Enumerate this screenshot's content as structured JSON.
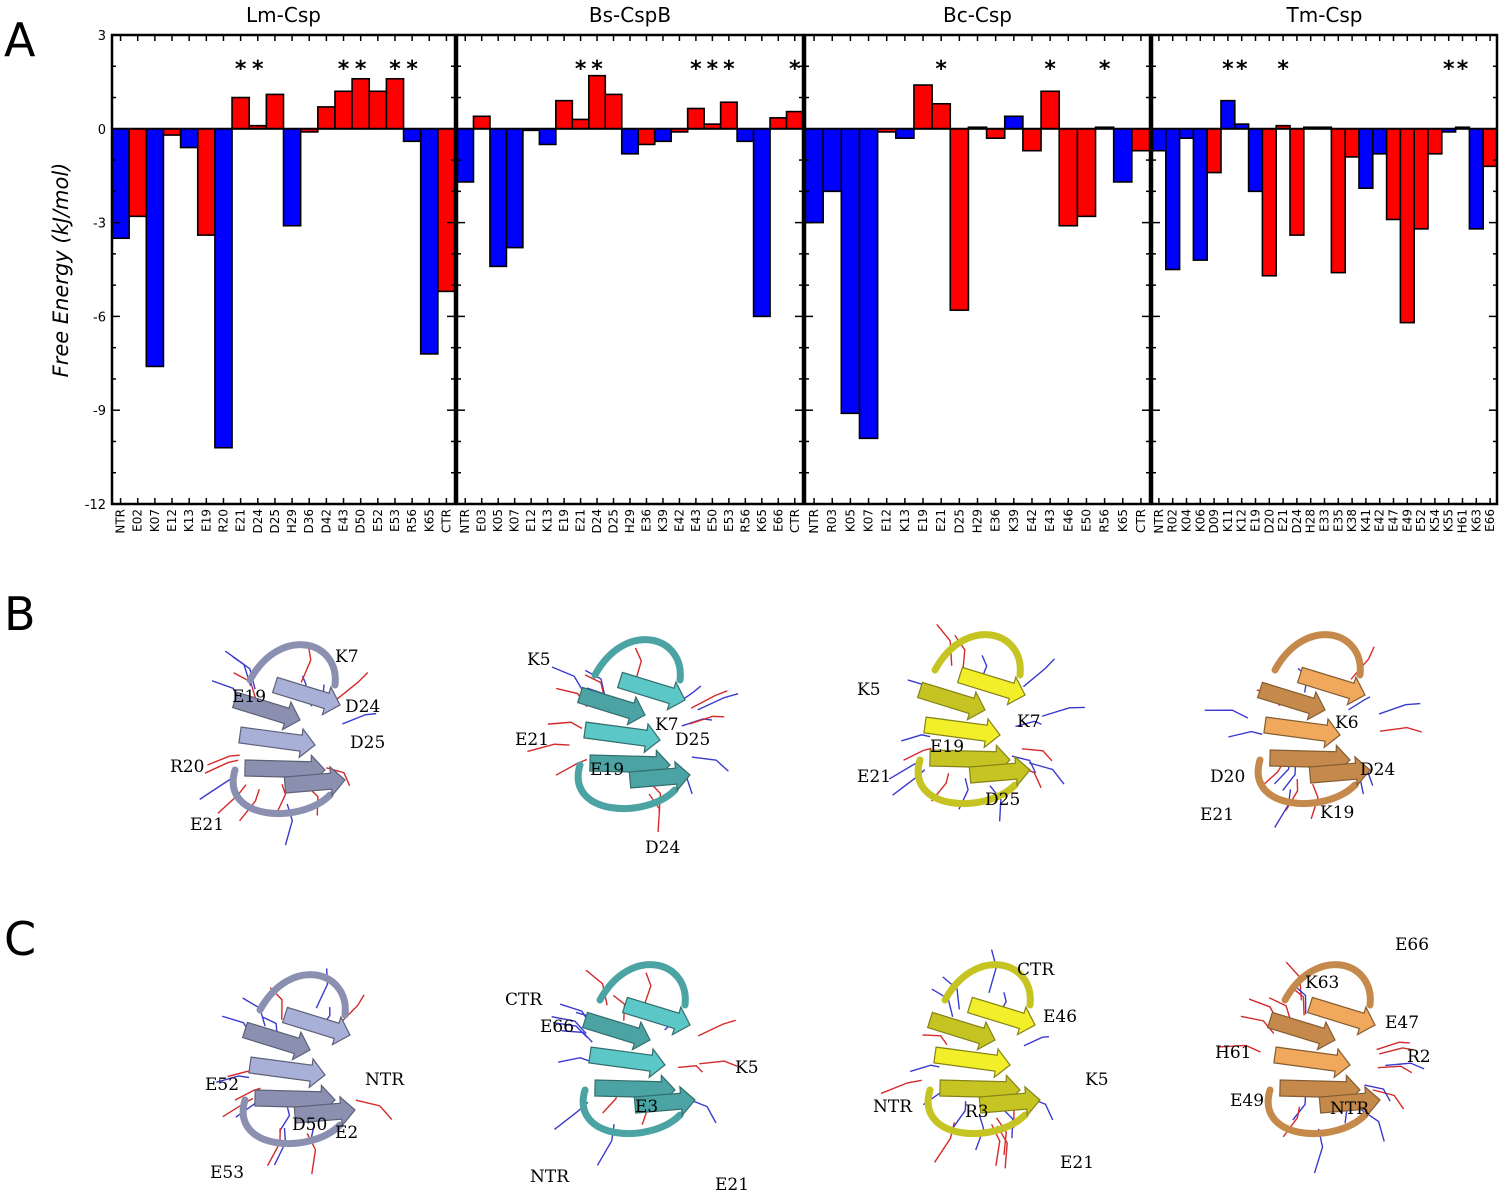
{
  "panel_letters": [
    "A",
    "B",
    "C"
  ],
  "colors": {
    "positive": "#ff0000",
    "negative": "#0000ff",
    "frame": "#000000"
  },
  "chart_data": [
    {
      "type": "bar",
      "title": "Lm-Csp",
      "ylabel": "Free Energy (kJ/mol)",
      "ylim": [
        -12,
        3
      ],
      "yticks": [
        3,
        0,
        -3,
        -6,
        -9,
        -12
      ],
      "categories": [
        "NTR",
        "E02",
        "K07",
        "E12",
        "K13",
        "E19",
        "R20",
        "E21",
        "D24",
        "D25",
        "H29",
        "D36",
        "D42",
        "E43",
        "D50",
        "E52",
        "E53",
        "R56",
        "K65",
        "CTR"
      ],
      "values": [
        -3.5,
        -2.8,
        -7.6,
        -0.2,
        -0.6,
        -3.4,
        -10.2,
        1.0,
        0.1,
        1.1,
        -3.1,
        -0.1,
        0.7,
        1.2,
        1.6,
        1.2,
        1.6,
        -0.4,
        -7.2,
        -5.2
      ],
      "colors": [
        "blue",
        "red",
        "blue",
        "red",
        "blue",
        "red",
        "blue",
        "red",
        "red",
        "red",
        "blue",
        "red",
        "red",
        "red",
        "red",
        "red",
        "red",
        "blue",
        "blue",
        "red"
      ],
      "significant": [
        "E21",
        "D24",
        "E43",
        "D50",
        "E53",
        "R56"
      ]
    },
    {
      "type": "bar",
      "title": "Bs-CspB",
      "ylim": [
        -12,
        3
      ],
      "categories": [
        "NTR",
        "E03",
        "K05",
        "K07",
        "E12",
        "K13",
        "E19",
        "E21",
        "D24",
        "D25",
        "H29",
        "E36",
        "K39",
        "E42",
        "E43",
        "E50",
        "E53",
        "R56",
        "K65",
        "E66",
        "CTR"
      ],
      "values": [
        -1.7,
        0.4,
        -4.4,
        -3.8,
        -0.05,
        -0.5,
        0.9,
        0.3,
        1.7,
        1.1,
        -0.8,
        -0.5,
        -0.4,
        -0.1,
        0.65,
        0.15,
        0.85,
        -0.4,
        -6.0,
        0.35,
        0.55
      ],
      "colors": [
        "blue",
        "red",
        "blue",
        "blue",
        "red",
        "blue",
        "red",
        "red",
        "red",
        "red",
        "blue",
        "red",
        "blue",
        "red",
        "red",
        "red",
        "red",
        "blue",
        "blue",
        "red",
        "red"
      ],
      "significant": [
        "E21",
        "D24",
        "E43",
        "E50",
        "E53",
        "CTR"
      ]
    },
    {
      "type": "bar",
      "title": "Bc-Csp",
      "ylim": [
        -12,
        3
      ],
      "categories": [
        "NTR",
        "R03",
        "K05",
        "K07",
        "E12",
        "K13",
        "E19",
        "E21",
        "D25",
        "H29",
        "E36",
        "K39",
        "E42",
        "E43",
        "E46",
        "E50",
        "R56",
        "K65",
        "CTR"
      ],
      "values": [
        -3.0,
        -2.0,
        -9.1,
        -9.9,
        -0.1,
        -0.3,
        1.4,
        0.8,
        -5.8,
        0.05,
        -0.3,
        0.4,
        -0.7,
        1.2,
        -3.1,
        -2.8,
        0.05,
        -1.7,
        -0.7
      ],
      "colors": [
        "blue",
        "blue",
        "blue",
        "blue",
        "red",
        "blue",
        "red",
        "red",
        "red",
        "blue",
        "red",
        "blue",
        "red",
        "red",
        "red",
        "red",
        "red",
        "blue",
        "red"
      ],
      "significant": [
        "E21",
        "E43",
        "R56"
      ]
    },
    {
      "type": "bar",
      "title": "Tm-Csp",
      "ylim": [
        -12,
        3
      ],
      "categories": [
        "NTR",
        "R02",
        "K04",
        "K06",
        "D09",
        "K11",
        "K12",
        "E19",
        "D20",
        "E21",
        "D24",
        "H28",
        "E33",
        "E35",
        "K38",
        "K41",
        "E42",
        "E47",
        "E49",
        "E52",
        "K54",
        "K55",
        "H61",
        "K63",
        "E66"
      ],
      "values": [
        -0.7,
        -4.5,
        -0.3,
        -4.2,
        -1.4,
        0.9,
        0.15,
        -2.0,
        -4.7,
        0.1,
        -3.4,
        0.05,
        0.05,
        -4.6,
        -0.9,
        -1.9,
        -0.8,
        -2.9,
        -6.2,
        -3.2,
        -0.8,
        -0.1,
        0.05,
        -3.2,
        -1.2
      ],
      "colors": [
        "blue",
        "blue",
        "blue",
        "blue",
        "red",
        "blue",
        "blue",
        "blue",
        "red",
        "red",
        "red",
        "blue",
        "red",
        "red",
        "red",
        "blue",
        "blue",
        "red",
        "red",
        "red",
        "red",
        "blue",
        "blue",
        "blue",
        "red"
      ],
      "significant": [
        "K11",
        "K12",
        "E21",
        "K55",
        "H61"
      ]
    }
  ],
  "structures_B": [
    {
      "name": "Lm-Csp",
      "color": "#a9b0d8",
      "labels": [
        "K7",
        "E19",
        "D24",
        "D25",
        "R20",
        "E21"
      ]
    },
    {
      "name": "Bs-CspB",
      "color": "#5cc7c7",
      "labels": [
        "K5",
        "K7",
        "E21",
        "D25",
        "E19",
        "D24"
      ]
    },
    {
      "name": "Bc-Csp",
      "color": "#f2ef2a",
      "labels": [
        "K5",
        "K7",
        "E19",
        "E21",
        "D25"
      ]
    },
    {
      "name": "Tm-Csp",
      "color": "#f0a85c",
      "labels": [
        "K6",
        "D20",
        "D24",
        "E21",
        "K19"
      ]
    }
  ],
  "structures_C": [
    {
      "name": "Lm-Csp",
      "color": "#a9b0d8",
      "labels": [
        "E52",
        "NTR",
        "D50",
        "E2",
        "E53"
      ]
    },
    {
      "name": "Bs-CspB",
      "color": "#5cc7c7",
      "labels": [
        "CTR",
        "E66",
        "K5",
        "E3",
        "NTR",
        "E21"
      ]
    },
    {
      "name": "Bc-Csp",
      "color": "#f2ef2a",
      "labels": [
        "CTR",
        "E46",
        "K5",
        "NTR",
        "R3",
        "E21"
      ]
    },
    {
      "name": "Tm-Csp",
      "color": "#f0a85c",
      "labels": [
        "E66",
        "K63",
        "E47",
        "H61",
        "R2",
        "E49",
        "NTR"
      ]
    }
  ]
}
